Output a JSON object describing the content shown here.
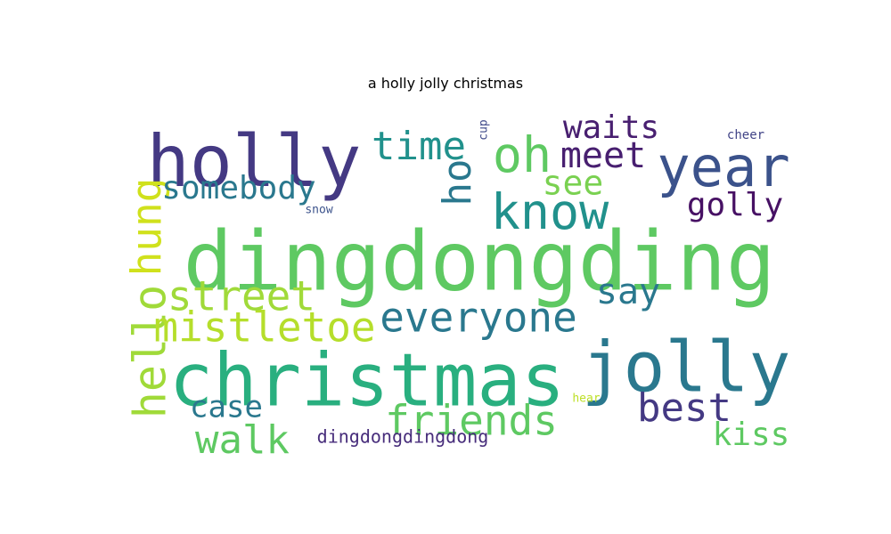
{
  "chart_data": {
    "type": "wordcloud",
    "title": "a holly jolly christmas",
    "words": [
      {
        "text": "dingdongding",
        "weight": 100,
        "color": "#5ec962",
        "rotate": 0
      },
      {
        "text": "christmas",
        "weight": 82,
        "color": "#29af7f",
        "rotate": 0
      },
      {
        "text": "holly",
        "weight": 80,
        "color": "#443983",
        "rotate": 0
      },
      {
        "text": "jolly",
        "weight": 78,
        "color": "#2a788e",
        "rotate": 0
      },
      {
        "text": "year",
        "weight": 60,
        "color": "#3b528b",
        "rotate": 0
      },
      {
        "text": "know",
        "weight": 55,
        "color": "#21918c",
        "rotate": 0
      },
      {
        "text": "oh",
        "weight": 55,
        "color": "#5ec962",
        "rotate": 0
      },
      {
        "text": "hello",
        "weight": 50,
        "color": "#a0da39",
        "rotate": -90
      },
      {
        "text": "mistletoe",
        "weight": 48,
        "color": "#b5de2b",
        "rotate": 0
      },
      {
        "text": "friends",
        "weight": 48,
        "color": "#5ec962",
        "rotate": 0
      },
      {
        "text": "everyone",
        "weight": 47,
        "color": "#2a788e",
        "rotate": 0
      },
      {
        "text": "street",
        "weight": 45,
        "color": "#a0da39",
        "rotate": 0
      },
      {
        "text": "hung",
        "weight": 45,
        "color": "#d0e11c",
        "rotate": -90
      },
      {
        "text": "best",
        "weight": 45,
        "color": "#443983",
        "rotate": 0
      },
      {
        "text": "walk",
        "weight": 45,
        "color": "#5ec962",
        "rotate": 0
      },
      {
        "text": "time",
        "weight": 44,
        "color": "#21918c",
        "rotate": 0
      },
      {
        "text": "ho",
        "weight": 44,
        "color": "#2a788e",
        "rotate": -90
      },
      {
        "text": "meet",
        "weight": 40,
        "color": "#481f70",
        "rotate": 0
      },
      {
        "text": "say",
        "weight": 40,
        "color": "#2a788e",
        "rotate": 0
      },
      {
        "text": "see",
        "weight": 38,
        "color": "#7ad151",
        "rotate": 0
      },
      {
        "text": "somebody",
        "weight": 36,
        "color": "#2a788e",
        "rotate": 0
      },
      {
        "text": "waits",
        "weight": 36,
        "color": "#481f70",
        "rotate": 0
      },
      {
        "text": "golly",
        "weight": 36,
        "color": "#471164",
        "rotate": 0
      },
      {
        "text": "kiss",
        "weight": 36,
        "color": "#5ec962",
        "rotate": 0
      },
      {
        "text": "case",
        "weight": 35,
        "color": "#2a788e",
        "rotate": 0
      },
      {
        "text": "dingdongdingdong",
        "weight": 20,
        "color": "#472d7b",
        "rotate": 0
      },
      {
        "text": "cheer",
        "weight": 14,
        "color": "#414487",
        "rotate": 0
      },
      {
        "text": "snow",
        "weight": 12,
        "color": "#3b528b",
        "rotate": 0
      },
      {
        "text": "hear",
        "weight": 12,
        "color": "#bddf26",
        "rotate": 0
      },
      {
        "text": "cup",
        "weight": 12,
        "color": "#3e4989",
        "rotate": -90
      }
    ]
  }
}
